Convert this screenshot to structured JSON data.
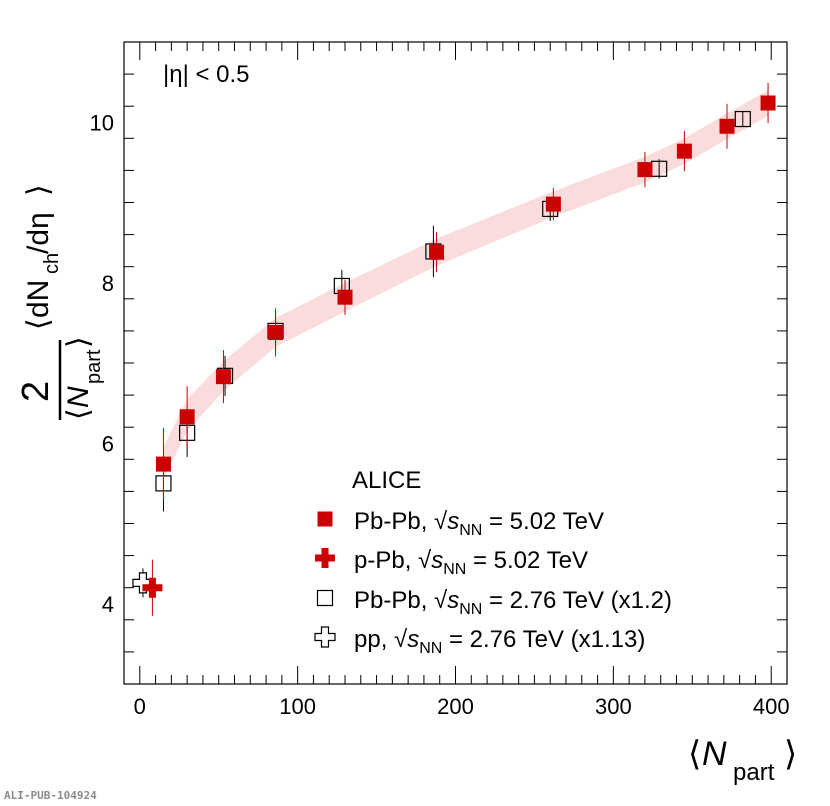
{
  "chart_data": {
    "type": "scatter",
    "annotation": "|η| < 0.5",
    "experiment": "ALICE",
    "xlabel_main": "N",
    "xlabel_sub": "part",
    "ylabel_numerator": "2",
    "ylabel_main": "dN",
    "ylabel_sub": "ch",
    "ylabel_tail": "/dη",
    "xlim": [
      -10,
      410
    ],
    "ylim": [
      3.0,
      11.0
    ],
    "x_ticks": [
      0,
      100,
      200,
      300,
      400
    ],
    "y_ticks": [
      4,
      6,
      8,
      10
    ],
    "band_color": "#fadcdc",
    "series": [
      {
        "name": "Pb-Pb, √sNN = 5.02 TeV",
        "label_prefix": "Pb-Pb,",
        "label_suffix": "= 5.02 TeV",
        "marker": "filled-square",
        "color": "#cc0000",
        "points": [
          {
            "x": 15,
            "y": 5.74,
            "err": 0.45
          },
          {
            "x": 30,
            "y": 6.33,
            "err": 0.38
          },
          {
            "x": 53,
            "y": 6.83,
            "err": 0.33
          },
          {
            "x": 86,
            "y": 7.38,
            "err": 0.3
          },
          {
            "x": 130,
            "y": 7.82,
            "err": 0.22
          },
          {
            "x": 188,
            "y": 8.38,
            "err": 0.25
          },
          {
            "x": 262,
            "y": 8.98,
            "err": 0.2
          },
          {
            "x": 320,
            "y": 9.41,
            "err": 0.22
          },
          {
            "x": 345,
            "y": 9.64,
            "err": 0.25
          },
          {
            "x": 372,
            "y": 9.95,
            "err": 0.28
          },
          {
            "x": 398,
            "y": 10.24,
            "err": 0.25
          }
        ]
      },
      {
        "name": "p-Pb, √sNN = 5.02 TeV",
        "label_prefix": "p-Pb,",
        "label_suffix": "= 5.02 TeV",
        "marker": "filled-cross",
        "color": "#cc0000",
        "points": [
          {
            "x": 8,
            "y": 4.2,
            "err": 0.35
          }
        ]
      },
      {
        "name": "Pb-Pb, √sNN = 2.76 TeV (x1.2)",
        "label_prefix": "Pb-Pb,",
        "label_suffix": "= 2.76 TeV (x1.2)",
        "marker": "open-square",
        "color": "#000000",
        "points": [
          {
            "x": 15,
            "y": 5.5,
            "err": 0.35
          },
          {
            "x": 30,
            "y": 6.13,
            "err": 0.3
          },
          {
            "x": 54,
            "y": 6.84,
            "err": 0.25
          },
          {
            "x": 86,
            "y": 7.4,
            "err": 0.25
          },
          {
            "x": 128,
            "y": 7.96,
            "err": 0.2
          },
          {
            "x": 186,
            "y": 8.39,
            "err": 0.32
          },
          {
            "x": 260,
            "y": 8.92,
            "err": 0.15
          },
          {
            "x": 329,
            "y": 9.42,
            "err": 0.12
          },
          {
            "x": 382,
            "y": 10.04,
            "err": 0.1
          }
        ]
      },
      {
        "name": "pp, √sNN = 2.76 TeV (x1.13)",
        "label_prefix": "pp,",
        "label_suffix": "= 2.76 TeV (x1.13)",
        "marker": "open-cross",
        "color": "#000000",
        "points": [
          {
            "x": 2,
            "y": 4.26,
            "err": 0.18
          }
        ]
      }
    ],
    "band": [
      {
        "x": 15,
        "lo": 5.55,
        "hi": 5.95
      },
      {
        "x": 30,
        "lo": 6.15,
        "hi": 6.55
      },
      {
        "x": 53,
        "lo": 6.65,
        "hi": 7.02
      },
      {
        "x": 86,
        "lo": 7.2,
        "hi": 7.56
      },
      {
        "x": 130,
        "lo": 7.64,
        "hi": 8.0
      },
      {
        "x": 188,
        "lo": 8.21,
        "hi": 8.55
      },
      {
        "x": 262,
        "lo": 8.82,
        "hi": 9.14
      },
      {
        "x": 320,
        "lo": 9.25,
        "hi": 9.57
      },
      {
        "x": 345,
        "lo": 9.48,
        "hi": 9.8
      },
      {
        "x": 372,
        "lo": 9.79,
        "hi": 10.11
      },
      {
        "x": 398,
        "lo": 10.08,
        "hi": 10.4
      }
    ]
  },
  "footer": {
    "pub_id": "ALI-PUB-104924"
  }
}
